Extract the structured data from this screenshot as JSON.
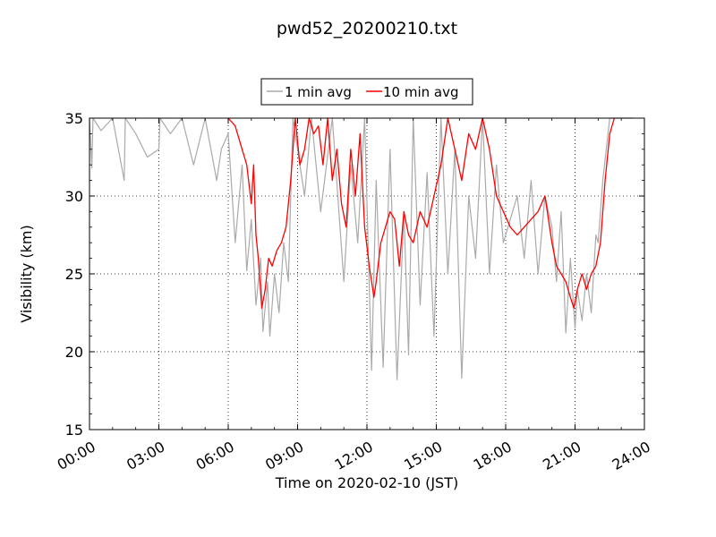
{
  "chart_data": {
    "type": "line",
    "title": "pwd52_20200210.txt",
    "xlabel": "Time on 2020-02-10 (JST)",
    "ylabel": "Visibility (km)",
    "xlim": [
      0,
      24
    ],
    "ylim": [
      15,
      35
    ],
    "x_ticks": [
      0,
      3,
      6,
      9,
      12,
      15,
      18,
      21,
      24
    ],
    "x_tick_labels": [
      "00:00",
      "03:00",
      "06:00",
      "09:00",
      "12:00",
      "15:00",
      "18:00",
      "21:00",
      "24:00"
    ],
    "y_ticks": [
      15,
      20,
      25,
      30,
      35
    ],
    "y_tick_labels": [
      "15",
      "20",
      "25",
      "30",
      "35"
    ],
    "grid": true,
    "legend_position": "top-center",
    "series": [
      {
        "name": "1 min avg",
        "color": "#aaaaaa",
        "x": [
          0,
          0.1,
          0.15,
          0.5,
          1.0,
          1.5,
          1.55,
          2.0,
          2.5,
          3.0,
          3.05,
          3.5,
          4.0,
          4.5,
          5.0,
          5.5,
          5.7,
          6.0,
          6.3,
          6.6,
          6.8,
          7.0,
          7.2,
          7.4,
          7.5,
          7.7,
          7.8,
          8.0,
          8.2,
          8.4,
          8.6,
          8.8,
          9.0,
          9.3,
          9.6,
          10.0,
          10.5,
          11.0,
          11.3,
          11.6,
          11.9,
          12.2,
          12.4,
          12.7,
          13.0,
          13.3,
          13.6,
          13.8,
          14.0,
          14.3,
          14.6,
          14.9,
          15.2,
          15.5,
          15.8,
          16.1,
          16.4,
          16.7,
          17.0,
          17.3,
          17.6,
          17.9,
          18.2,
          18.5,
          18.8,
          19.1,
          19.4,
          19.7,
          20.0,
          20.2,
          20.4,
          20.6,
          20.8,
          21.0,
          21.1,
          21.3,
          21.5,
          21.7,
          21.9,
          22.0,
          22.2,
          22.5,
          23.0,
          23.5
        ],
        "values": [
          35,
          31.8,
          35,
          34.2,
          35,
          31,
          35,
          34,
          32.5,
          33,
          35,
          34,
          35,
          32,
          35,
          31,
          33,
          34,
          27,
          32,
          25.2,
          28.5,
          23,
          26,
          21.3,
          24.5,
          21,
          25,
          22.5,
          27,
          24.5,
          35,
          33,
          30,
          35,
          29,
          35,
          24.5,
          32,
          27,
          35,
          18.8,
          31,
          19,
          33,
          18.2,
          29,
          19.8,
          35,
          23,
          31.5,
          21,
          35,
          25,
          33,
          18.3,
          30,
          26,
          35,
          25,
          32,
          27,
          28.5,
          30,
          26,
          31,
          25,
          30,
          28,
          24.5,
          29,
          21.2,
          26,
          21.5,
          24,
          22,
          25,
          22.5,
          27.5,
          27,
          31,
          35,
          35,
          35
        ]
      },
      {
        "name": "10 min avg",
        "color": "#ff0000",
        "x": [
          6.0,
          6.3,
          6.5,
          6.8,
          7.0,
          7.1,
          7.2,
          7.3,
          7.45,
          7.6,
          7.75,
          7.9,
          8.1,
          8.3,
          8.5,
          8.7,
          8.9,
          9.1,
          9.3,
          9.5,
          9.7,
          9.9,
          10.1,
          10.3,
          10.5,
          10.7,
          10.9,
          11.1,
          11.3,
          11.5,
          11.7,
          11.9,
          12.1,
          12.3,
          12.4,
          12.6,
          12.8,
          13.0,
          13.2,
          13.4,
          13.6,
          13.8,
          14.0,
          14.3,
          14.6,
          14.9,
          15.2,
          15.5,
          15.8,
          16.1,
          16.4,
          16.7,
          17.0,
          17.3,
          17.6,
          17.9,
          18.2,
          18.5,
          18.8,
          19.1,
          19.4,
          19.7,
          20.0,
          20.2,
          20.4,
          20.6,
          20.8,
          20.95,
          21.1,
          21.3,
          21.5,
          21.7,
          21.9,
          22.1,
          22.3,
          22.5,
          22.7
        ],
        "values": [
          35,
          34.5,
          33.5,
          32,
          29.5,
          32,
          27.5,
          26,
          22.8,
          24,
          26,
          25.5,
          26.5,
          27,
          28,
          31,
          35,
          32,
          33,
          35,
          34,
          34.5,
          32,
          35,
          31,
          33,
          29.5,
          28,
          33,
          30,
          34,
          28,
          25.5,
          23.5,
          24.5,
          27,
          28,
          29,
          28.5,
          25.5,
          29,
          27.5,
          27,
          29,
          28,
          30,
          32,
          35,
          33,
          31,
          34,
          33,
          35,
          33,
          30,
          29,
          28,
          27.5,
          28,
          28.5,
          29,
          30,
          27,
          25.5,
          25,
          24.5,
          23.5,
          22.8,
          24,
          25,
          24,
          25,
          25.5,
          27,
          31,
          34,
          35
        ]
      }
    ]
  }
}
